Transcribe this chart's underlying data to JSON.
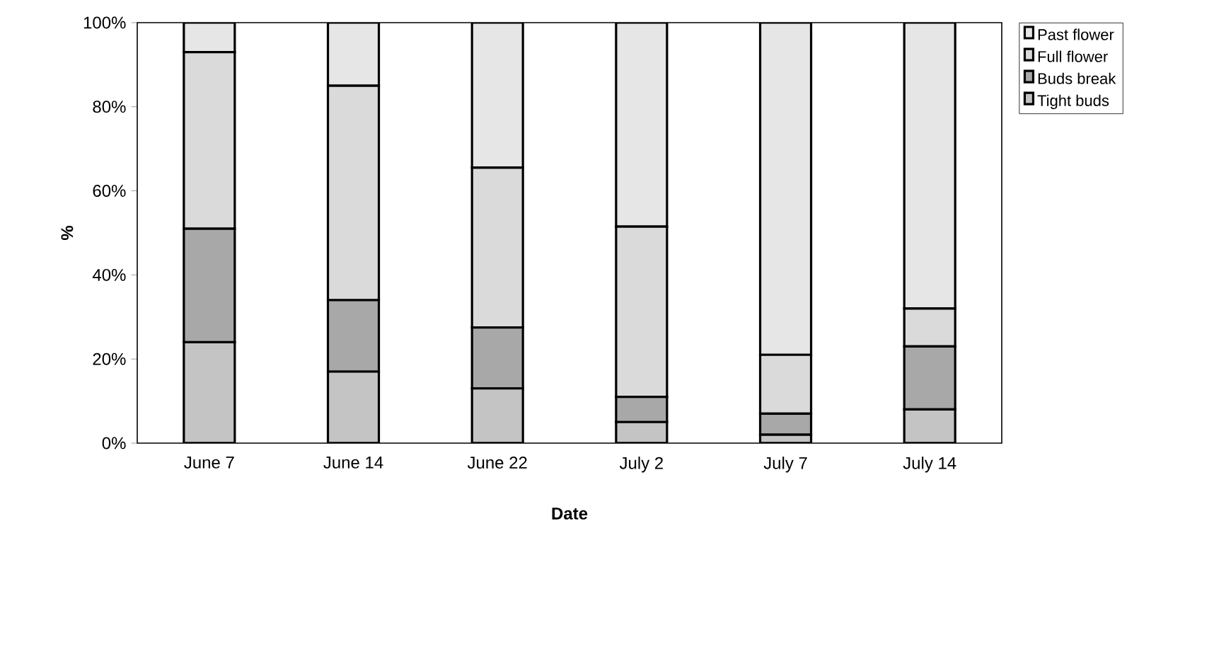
{
  "chart_data": {
    "type": "bar",
    "stacked": true,
    "xlabel": "Date",
    "ylabel": "%",
    "categories": [
      "June 7",
      "June 14",
      "June 22",
      "July 2",
      "July 7",
      "July 14"
    ],
    "series": [
      {
        "name": "Tight buds",
        "color": "#c4c4c4",
        "values": [
          24,
          17,
          13,
          5,
          2,
          8
        ]
      },
      {
        "name": "Buds break",
        "color": "#a8a8a8",
        "values": [
          27,
          17,
          14.5,
          6,
          5,
          15
        ]
      },
      {
        "name": "Full flower",
        "color": "#dadada",
        "values": [
          42,
          51,
          38,
          40.5,
          14,
          9
        ]
      },
      {
        "name": "Past flower",
        "color": "#e6e6e6",
        "values": [
          7,
          15,
          34.5,
          48.5,
          79,
          68
        ]
      }
    ],
    "ylim": [
      0,
      100
    ],
    "yticks": [
      {
        "value": 0,
        "label": "0%"
      },
      {
        "value": 20,
        "label": "20%"
      },
      {
        "value": 40,
        "label": "40%"
      },
      {
        "value": 60,
        "label": "60%"
      },
      {
        "value": 80,
        "label": "80%"
      },
      {
        "value": 100,
        "label": "100%"
      }
    ],
    "legend": "top right"
  }
}
